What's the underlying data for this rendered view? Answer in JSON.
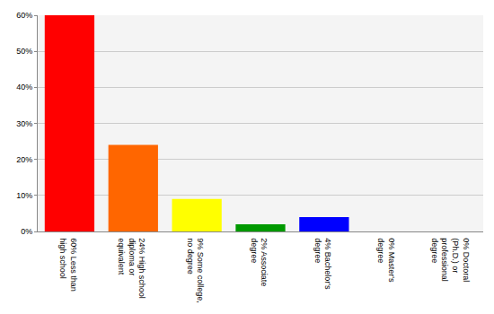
{
  "chart_data": {
    "type": "bar",
    "categories": [
      "60% Less than high school",
      "24% High school diploma or equivalent",
      "9% Some college, no degree",
      "2% Associate degree",
      "4% Bachelor's degree",
      "0% Master's degree",
      "0% Doctoral (Ph.D.) or professional degree"
    ],
    "values": [
      60,
      24,
      9,
      2,
      4,
      0,
      0
    ],
    "colors": [
      "#ff0000",
      "#ff6600",
      "#ffff00",
      "#009900",
      "#0000ff",
      "#9900ff",
      "#ff00ff"
    ],
    "ylim": [
      0,
      60
    ],
    "yticks": [
      {
        "value": 0,
        "label": "0%"
      },
      {
        "value": 10,
        "label": "10%"
      },
      {
        "value": 20,
        "label": "20%"
      },
      {
        "value": 30,
        "label": "30%"
      },
      {
        "value": 40,
        "label": "40%"
      },
      {
        "value": 50,
        "label": "50%"
      },
      {
        "value": 60,
        "label": "60%"
      }
    ],
    "grid": true
  }
}
